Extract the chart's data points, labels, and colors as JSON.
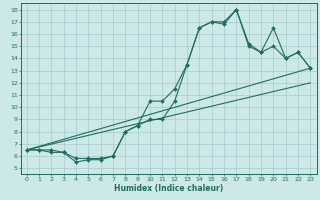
{
  "xlabel": "Humidex (Indice chaleur)",
  "xlim": [
    -0.5,
    23.5
  ],
  "ylim": [
    4.5,
    18.5
  ],
  "xticks": [
    0,
    1,
    2,
    3,
    4,
    5,
    6,
    7,
    8,
    9,
    10,
    11,
    12,
    13,
    14,
    15,
    16,
    17,
    18,
    19,
    20,
    21,
    22,
    23
  ],
  "yticks": [
    5,
    6,
    7,
    8,
    9,
    10,
    11,
    12,
    13,
    14,
    15,
    16,
    17,
    18
  ],
  "bg_color": "#cce8e8",
  "grid_color": "#a8cccc",
  "line_color": "#1e6e5e",
  "series": [
    {
      "x": [
        0,
        1,
        2,
        3,
        4,
        5,
        6,
        7,
        8,
        9,
        10,
        11,
        12,
        13,
        14,
        15,
        16,
        17,
        18,
        19,
        20,
        21,
        22,
        23
      ],
      "y": [
        6.5,
        6.5,
        6.5,
        6.3,
        5.8,
        5.8,
        5.8,
        6.0,
        8.0,
        8.5,
        9.0,
        9.0,
        10.5,
        13.5,
        16.5,
        17.0,
        17.0,
        18.0,
        15.2,
        14.5,
        16.5,
        14.0,
        14.5,
        13.2
      ]
    },
    {
      "x": [
        0,
        1,
        2,
        3,
        4,
        5,
        6,
        7,
        8,
        9,
        10,
        11,
        12,
        13,
        14,
        15,
        16,
        17,
        18,
        19,
        20,
        21,
        22,
        23
      ],
      "y": [
        6.5,
        6.5,
        6.3,
        6.3,
        5.5,
        5.7,
        5.7,
        6.0,
        8.0,
        8.5,
        10.5,
        10.5,
        11.5,
        13.5,
        16.5,
        17.0,
        16.8,
        18.0,
        15.0,
        14.5,
        15.0,
        14.0,
        14.5,
        13.2
      ]
    },
    {
      "x": [
        0,
        23
      ],
      "y": [
        6.5,
        13.2
      ]
    },
    {
      "x": [
        0,
        23
      ],
      "y": [
        6.5,
        12.0
      ]
    }
  ]
}
